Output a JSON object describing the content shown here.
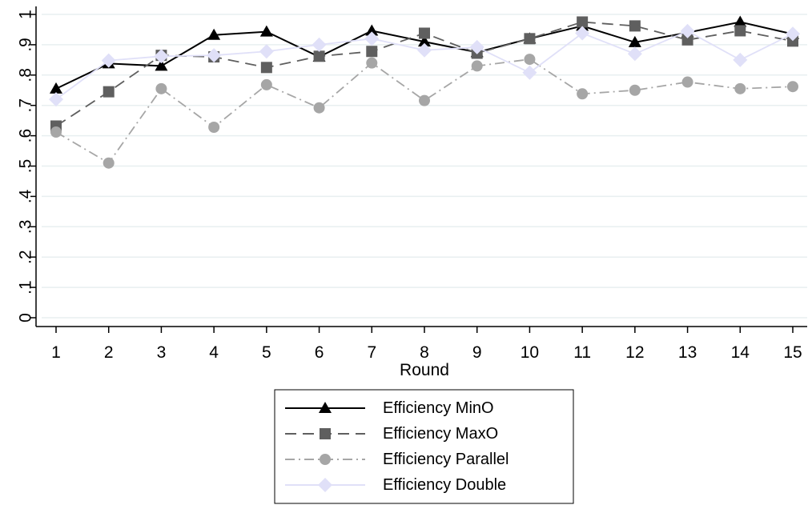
{
  "chart_data": {
    "type": "line",
    "xlabel": "Round",
    "ylabel": "",
    "title": "",
    "x": [
      1,
      2,
      3,
      4,
      5,
      6,
      7,
      8,
      9,
      10,
      11,
      12,
      13,
      14,
      15
    ],
    "x_ticks": [
      "1",
      "2",
      "3",
      "4",
      "5",
      "6",
      "7",
      "8",
      "9",
      "10",
      "11",
      "12",
      "13",
      "14",
      "15"
    ],
    "ylim": [
      0,
      1
    ],
    "y_ticks": [
      {
        "value": 0,
        "label": "0"
      },
      {
        "value": 0.1,
        "label": ".1"
      },
      {
        "value": 0.2,
        "label": ".2"
      },
      {
        "value": 0.3,
        "label": ".3"
      },
      {
        "value": 0.4,
        "label": ".4"
      },
      {
        "value": 0.5,
        "label": ".5"
      },
      {
        "value": 0.6,
        "label": ".6"
      },
      {
        "value": 0.7,
        "label": ".7"
      },
      {
        "value": 0.8,
        "label": ".8"
      },
      {
        "value": 0.9,
        "label": ".9"
      },
      {
        "value": 1,
        "label": "1"
      }
    ],
    "grid": true,
    "legend_position": "bottom-center",
    "series": [
      {
        "name": "Efficiency MinO",
        "color": "#000000",
        "marker": "triangle",
        "dash": "solid",
        "values": [
          0.755,
          0.838,
          0.83,
          0.932,
          0.943,
          0.86,
          0.946,
          0.91,
          0.875,
          0.92,
          0.962,
          0.908,
          0.94,
          0.975,
          0.935
        ]
      },
      {
        "name": "Efficiency MaxO",
        "color": "#5f5f5f",
        "marker": "square",
        "dash": "longdash",
        "values": [
          0.632,
          0.745,
          0.865,
          0.86,
          0.825,
          0.862,
          0.878,
          0.938,
          0.872,
          0.92,
          0.975,
          0.962,
          0.916,
          0.946,
          0.912
        ]
      },
      {
        "name": "Efficiency Parallel",
        "color": "#a6a6a6",
        "marker": "circle",
        "dash": "dashdot",
        "values": [
          0.612,
          0.51,
          0.755,
          0.628,
          0.768,
          0.692,
          0.84,
          0.716,
          0.83,
          0.852,
          0.738,
          0.75,
          0.777,
          0.755,
          0.762
        ]
      },
      {
        "name": "Efficiency Double",
        "color": "#e0e0f8",
        "marker": "diamond",
        "dash": "solid",
        "values": [
          0.72,
          0.848,
          0.862,
          0.865,
          0.878,
          0.9,
          0.92,
          0.882,
          0.892,
          0.808,
          0.938,
          0.87,
          0.945,
          0.85,
          0.936
        ]
      }
    ]
  }
}
